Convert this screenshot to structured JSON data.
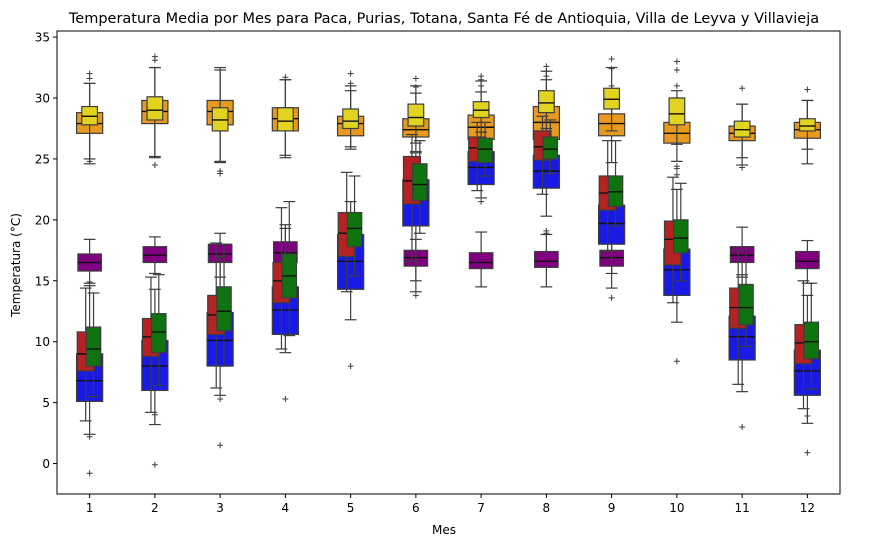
{
  "chart_data": {
    "type": "box",
    "title": "Temperatura Media por Mes para Paca, Purias, Totana, Santa Fé de Antioquia, Villa de Leyva y Villavieja",
    "xlabel": "Mes",
    "ylabel": "Temperatura (°C)",
    "categories": [
      "1",
      "2",
      "3",
      "4",
      "5",
      "6",
      "7",
      "8",
      "9",
      "10",
      "11",
      "12"
    ],
    "ylim": [
      -2.5,
      35.5
    ],
    "yticks": [
      0,
      5,
      10,
      15,
      20,
      25,
      30,
      35
    ],
    "grid": false,
    "legend": "none",
    "series": [
      {
        "color": "#e89a1f",
        "boxes": [
          {
            "whislo": 24.6,
            "q1": 27.1,
            "med": 27.9,
            "q3": 28.8,
            "whishi": 31.2,
            "fliers": [
              24.8,
              31.6,
              32.0
            ]
          },
          {
            "whislo": 25.1,
            "q1": 27.9,
            "med": 28.9,
            "q3": 29.8,
            "whishi": 32.5,
            "fliers": [
              24.5,
              33.1,
              33.4
            ]
          },
          {
            "whislo": 24.7,
            "q1": 27.8,
            "med": 28.9,
            "q3": 29.8,
            "whishi": 32.5,
            "fliers": [
              23.8,
              24.0
            ]
          },
          {
            "whislo": 25.1,
            "q1": 27.3,
            "med": 28.3,
            "q3": 29.2,
            "whishi": 31.5,
            "fliers": [
              31.7
            ]
          },
          {
            "whislo": 25.8,
            "q1": 26.9,
            "med": 27.9,
            "q3": 28.5,
            "whishi": 30.6,
            "fliers": [
              31.2,
              32.0
            ]
          },
          {
            "whislo": 25.6,
            "q1": 26.8,
            "med": 27.4,
            "q3": 28.3,
            "whishi": 30.4,
            "fliers": [
              30.9,
              31.6
            ]
          },
          {
            "whislo": 24.9,
            "q1": 26.6,
            "med": 27.6,
            "q3": 28.6,
            "whishi": 30.5,
            "fliers": [
              31.0,
              31.5,
              31.8
            ]
          },
          {
            "whislo": 24.4,
            "q1": 26.6,
            "med": 28.0,
            "q3": 29.3,
            "whishi": 31.5,
            "fliers": [
              31.8,
              32.2,
              32.6
            ]
          },
          {
            "whislo": 24.7,
            "q1": 26.9,
            "med": 27.9,
            "q3": 28.7,
            "whishi": 30.4,
            "fliers": [
              31.0,
              32.4,
              33.2
            ]
          },
          {
            "whislo": 24.8,
            "q1": 26.3,
            "med": 27.1,
            "q3": 28.0,
            "whishi": 30.0,
            "fliers": [
              24.2,
              24.4,
              31.0,
              32.3,
              33.0
            ]
          },
          {
            "whislo": 24.5,
            "q1": 26.5,
            "med": 27.1,
            "q3": 27.7,
            "whishi": 29.5,
            "fliers": [
              24.3,
              30.8
            ]
          },
          {
            "whislo": 24.6,
            "q1": 26.7,
            "med": 27.4,
            "q3": 28.0,
            "whishi": 29.8,
            "fliers": [
              30.7
            ]
          }
        ]
      },
      {
        "color": "#e1d320",
        "boxes": [
          {
            "whislo": 25.0,
            "q1": 27.8,
            "med": 28.5,
            "q3": 29.3,
            "whishi": 31.2,
            "fliers": []
          },
          {
            "whislo": 25.2,
            "q1": 28.2,
            "med": 29.0,
            "q3": 30.1,
            "whishi": 32.5,
            "fliers": []
          },
          {
            "whislo": 24.8,
            "q1": 27.3,
            "med": 28.2,
            "q3": 29.2,
            "whishi": 32.3,
            "fliers": []
          },
          {
            "whislo": 25.3,
            "q1": 27.3,
            "med": 28.1,
            "q3": 29.2,
            "whishi": 31.5,
            "fliers": []
          },
          {
            "whislo": 26.0,
            "q1": 27.5,
            "med": 28.1,
            "q3": 29.1,
            "whishi": 31.0,
            "fliers": []
          },
          {
            "whislo": 26.3,
            "q1": 27.7,
            "med": 28.4,
            "q3": 29.5,
            "whishi": 31.0,
            "fliers": []
          },
          {
            "whislo": 26.5,
            "q1": 28.4,
            "med": 29.0,
            "q3": 29.7,
            "whishi": 31.4,
            "fliers": []
          },
          {
            "whislo": 26.6,
            "q1": 28.8,
            "med": 29.6,
            "q3": 30.6,
            "whishi": 32.2,
            "fliers": []
          },
          {
            "whislo": 27.3,
            "q1": 29.1,
            "med": 29.9,
            "q3": 30.8,
            "whishi": 32.5,
            "fliers": []
          },
          {
            "whislo": 26.2,
            "q1": 27.8,
            "med": 28.7,
            "q3": 30.0,
            "whishi": 30.6,
            "fliers": []
          },
          {
            "whislo": 25.1,
            "q1": 26.8,
            "med": 27.4,
            "q3": 28.1,
            "whishi": 29.5,
            "fliers": []
          },
          {
            "whislo": 25.8,
            "q1": 27.3,
            "med": 27.7,
            "q3": 28.3,
            "whishi": 29.8,
            "fliers": []
          }
        ]
      },
      {
        "color": "#800080",
        "boxes": [
          {
            "whislo": 14.8,
            "q1": 15.8,
            "med": 16.5,
            "q3": 17.2,
            "whishi": 18.4,
            "fliers": []
          },
          {
            "whislo": 15.6,
            "q1": 16.5,
            "med": 17.1,
            "q3": 17.8,
            "whishi": 18.6,
            "fliers": []
          },
          {
            "whislo": 15.3,
            "q1": 16.5,
            "med": 17.2,
            "q3": 18.0,
            "whishi": 18.9,
            "fliers": []
          },
          {
            "whislo": 15.1,
            "q1": 16.5,
            "med": 17.3,
            "q3": 18.2,
            "whishi": 19.3,
            "fliers": []
          },
          {
            "whislo": 15.2,
            "q1": 16.4,
            "med": 17.1,
            "q3": 17.9,
            "whishi": 19.0,
            "fliers": []
          },
          {
            "whislo": 15.0,
            "q1": 16.2,
            "med": 16.9,
            "q3": 17.5,
            "whishi": 18.4,
            "fliers": []
          },
          {
            "whislo": 14.5,
            "q1": 16.0,
            "med": 16.5,
            "q3": 17.3,
            "whishi": 19.0,
            "fliers": []
          },
          {
            "whislo": 14.5,
            "q1": 16.1,
            "med": 16.6,
            "q3": 17.4,
            "whishi": 18.8,
            "fliers": []
          },
          {
            "whislo": 14.4,
            "q1": 16.2,
            "med": 16.9,
            "q3": 17.5,
            "whishi": 18.6,
            "fliers": []
          },
          {
            "whislo": 14.6,
            "q1": 16.4,
            "med": 17.0,
            "q3": 17.6,
            "whishi": 18.6,
            "fliers": []
          },
          {
            "whislo": 15.3,
            "q1": 16.5,
            "med": 17.1,
            "q3": 17.8,
            "whishi": 19.4,
            "fliers": []
          },
          {
            "whislo": 14.8,
            "q1": 16.0,
            "med": 16.6,
            "q3": 17.4,
            "whishi": 18.3,
            "fliers": []
          }
        ]
      },
      {
        "color": "#1a1ae6",
        "boxes": [
          {
            "whislo": 2.4,
            "q1": 5.1,
            "med": 6.8,
            "q3": 9.0,
            "whishi": 14.6,
            "fliers": [
              -0.8,
              2.2,
              14.9
            ]
          },
          {
            "whislo": 3.2,
            "q1": 6.0,
            "med": 8.0,
            "q3": 10.1,
            "whishi": 14.3,
            "fliers": [
              -0.1,
              4.0
            ]
          },
          {
            "whislo": 5.6,
            "q1": 8.0,
            "med": 10.1,
            "q3": 12.4,
            "whishi": 17.0,
            "fliers": [
              1.5,
              5.3
            ]
          },
          {
            "whislo": 9.1,
            "q1": 10.6,
            "med": 12.6,
            "q3": 14.5,
            "whishi": 19.6,
            "fliers": [
              5.3
            ]
          },
          {
            "whislo": 11.8,
            "q1": 14.3,
            "med": 16.6,
            "q3": 18.8,
            "whishi": 21.5,
            "fliers": [
              8.0
            ]
          },
          {
            "whislo": 14.1,
            "q1": 19.5,
            "med": 21.6,
            "q3": 23.3,
            "whishi": 25.5,
            "fliers": [
              13.8
            ]
          },
          {
            "whislo": 21.8,
            "q1": 22.9,
            "med": 24.3,
            "q3": 25.6,
            "whishi": 27.2,
            "fliers": [
              21.5
            ]
          },
          {
            "whislo": 20.3,
            "q1": 22.6,
            "med": 24.0,
            "q3": 25.3,
            "whishi": 27.5,
            "fliers": [
              18.9,
              19.1
            ]
          },
          {
            "whislo": 15.6,
            "q1": 18.0,
            "med": 19.7,
            "q3": 21.2,
            "whishi": 23.5,
            "fliers": [
              13.6
            ]
          },
          {
            "whislo": 11.6,
            "q1": 13.8,
            "med": 15.9,
            "q3": 17.6,
            "whishi": 22.5,
            "fliers": [
              8.4,
              23.7
            ]
          },
          {
            "whislo": 5.9,
            "q1": 8.5,
            "med": 10.4,
            "q3": 12.1,
            "whishi": 15.5,
            "fliers": [
              3.0
            ]
          },
          {
            "whislo": 3.3,
            "q1": 5.6,
            "med": 7.6,
            "q3": 9.3,
            "whishi": 13.8,
            "fliers": [
              0.9,
              3.9
            ]
          }
        ]
      },
      {
        "color": "#b52222",
        "boxes": [
          {
            "whislo": 3.5,
            "q1": 7.6,
            "med": 9.0,
            "q3": 10.8,
            "whishi": 14.4,
            "fliers": []
          },
          {
            "whislo": 4.2,
            "q1": 8.8,
            "med": 10.4,
            "q3": 11.9,
            "whishi": 15.3,
            "fliers": []
          },
          {
            "whislo": 6.2,
            "q1": 10.6,
            "med": 12.2,
            "q3": 13.8,
            "whishi": 18.1,
            "fliers": []
          },
          {
            "whislo": 9.4,
            "q1": 13.2,
            "med": 15.0,
            "q3": 16.5,
            "whishi": 21.0,
            "fliers": []
          },
          {
            "whislo": 14.1,
            "q1": 17.0,
            "med": 18.9,
            "q3": 20.6,
            "whishi": 23.9,
            "fliers": []
          },
          {
            "whislo": 16.6,
            "q1": 21.3,
            "med": 23.2,
            "q3": 25.2,
            "whishi": 27.0,
            "fliers": []
          },
          {
            "whislo": 22.4,
            "q1": 24.8,
            "med": 25.9,
            "q3": 26.8,
            "whishi": 28.0,
            "fliers": []
          },
          {
            "whislo": 22.1,
            "q1": 24.9,
            "med": 26.0,
            "q3": 27.3,
            "whishi": 28.5,
            "fliers": []
          },
          {
            "whislo": 17.4,
            "q1": 20.8,
            "med": 22.2,
            "q3": 23.6,
            "whishi": 26.5,
            "fliers": []
          },
          {
            "whislo": 13.2,
            "q1": 16.3,
            "med": 18.4,
            "q3": 19.9,
            "whishi": 23.5,
            "fliers": []
          },
          {
            "whislo": 6.5,
            "q1": 11.1,
            "med": 12.8,
            "q3": 14.4,
            "whishi": 17.5,
            "fliers": []
          },
          {
            "whislo": 4.5,
            "q1": 8.2,
            "med": 9.9,
            "q3": 11.4,
            "whishi": 15.0,
            "fliers": []
          }
        ]
      },
      {
        "color": "#0f730f",
        "boxes": [
          {
            "whislo": 5.5,
            "q1": 8.0,
            "med": 9.4,
            "q3": 11.2,
            "whishi": 14.0,
            "fliers": []
          },
          {
            "whislo": 6.4,
            "q1": 9.1,
            "med": 10.8,
            "q3": 12.3,
            "whishi": 15.5,
            "fliers": []
          },
          {
            "whislo": 8.0,
            "q1": 10.9,
            "med": 12.5,
            "q3": 14.5,
            "whishi": 18.0,
            "fliers": []
          },
          {
            "whislo": 10.5,
            "q1": 13.6,
            "med": 15.4,
            "q3": 17.2,
            "whishi": 21.5,
            "fliers": []
          },
          {
            "whislo": 15.4,
            "q1": 17.8,
            "med": 19.3,
            "q3": 20.6,
            "whishi": 23.6,
            "fliers": []
          },
          {
            "whislo": 18.9,
            "q1": 21.6,
            "med": 22.9,
            "q3": 24.6,
            "whishi": 26.5,
            "fliers": []
          },
          {
            "whislo": 23.6,
            "q1": 24.7,
            "med": 25.8,
            "q3": 26.7,
            "whishi": 28.0,
            "fliers": []
          },
          {
            "whislo": 23.8,
            "q1": 25.0,
            "med": 25.8,
            "q3": 26.8,
            "whishi": 28.2,
            "fliers": []
          },
          {
            "whislo": 19.5,
            "q1": 21.1,
            "med": 22.3,
            "q3": 23.6,
            "whishi": 26.5,
            "fliers": []
          },
          {
            "whislo": 15.0,
            "q1": 17.3,
            "med": 18.5,
            "q3": 20.0,
            "whishi": 23.0,
            "fliers": []
          },
          {
            "whislo": 9.6,
            "q1": 11.4,
            "med": 12.8,
            "q3": 14.7,
            "whishi": 17.8,
            "fliers": []
          },
          {
            "whislo": 6.1,
            "q1": 8.6,
            "med": 10.0,
            "q3": 11.6,
            "whishi": 14.8,
            "fliers": []
          }
        ]
      }
    ]
  }
}
